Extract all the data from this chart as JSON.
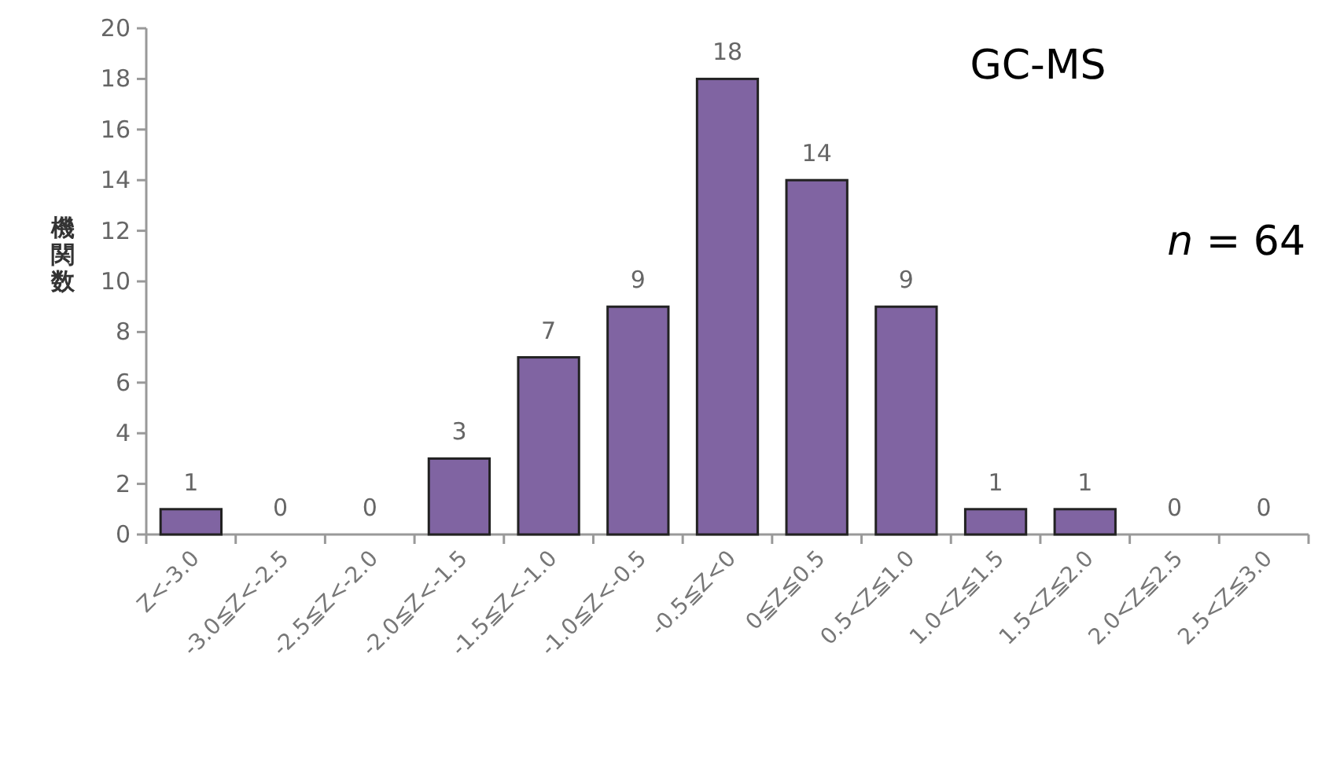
{
  "chart_data": {
    "type": "bar",
    "title": "GC-MS",
    "ylabel": "機関数",
    "annotations": [
      "*n* = 64"
    ],
    "categories": [
      "Z<-3.0",
      "-3.0≦Z<-2.5",
      "-2.5≦Z<-2.0",
      "-2.0≦Z<-1.5",
      "-1.5≦Z<-1.0",
      "-1.0≦Z<-0.5",
      "-0.5≦Z<0",
      "0≦Z≦0.5",
      "0.5<Z≦1.0",
      "1.0<Z≦1.5",
      "1.5<Z≦2.0",
      "2.0<Z≦2.5",
      "2.5<Z≦3.0"
    ],
    "values": [
      1,
      0,
      0,
      3,
      7,
      9,
      18,
      14,
      9,
      1,
      1,
      0,
      0
    ],
    "color": "#8064a2",
    "ylim": [
      0,
      20
    ],
    "yticks": [
      0,
      2,
      4,
      6,
      8,
      10,
      12,
      14,
      16,
      18,
      20
    ],
    "data_labels": true,
    "grid": false
  }
}
